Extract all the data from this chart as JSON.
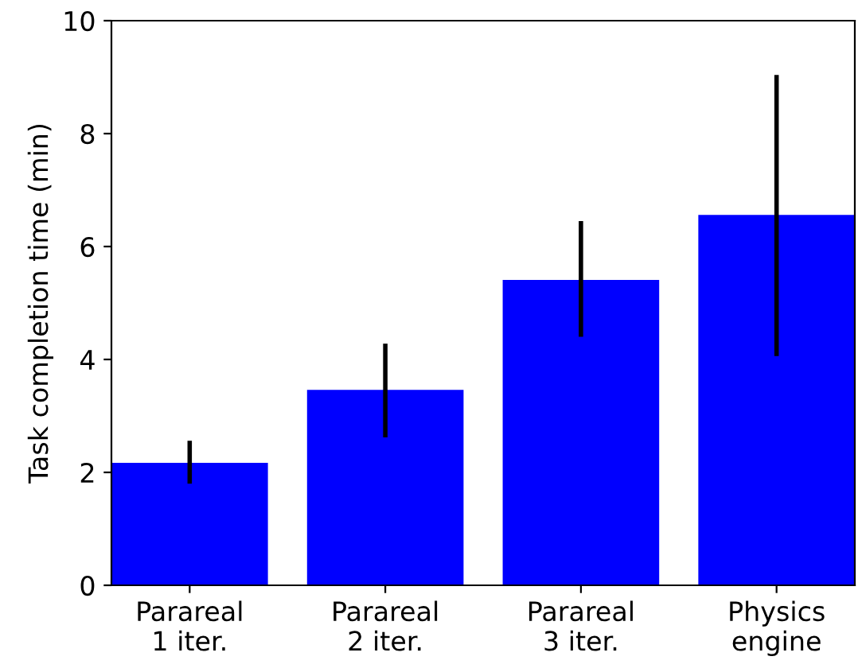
{
  "chart_data": {
    "type": "bar",
    "ylabel": "Task completion time (min)",
    "categories": [
      "Parareal\n1 iter.",
      "Parareal\n2 iter.",
      "Parareal\n3 iter.",
      "Physics\nengine"
    ],
    "values": [
      2.17,
      3.46,
      5.41,
      6.56
    ],
    "errors": [
      [
        1.8,
        2.56
      ],
      [
        2.62,
        4.28
      ],
      [
        4.4,
        6.45
      ],
      [
        4.06,
        9.04
      ]
    ],
    "color": "#0000ff",
    "ylim": [
      0,
      10
    ],
    "yticks": [
      0,
      2,
      4,
      6,
      8,
      10
    ],
    "grid": false
  }
}
